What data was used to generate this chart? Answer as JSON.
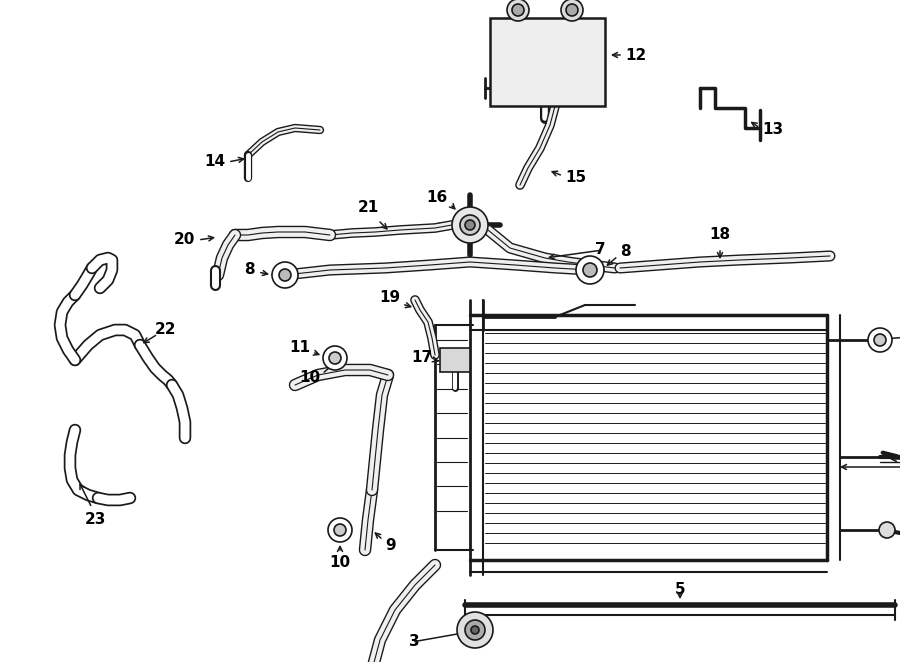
{
  "bg_color": "#ffffff",
  "line_color": "#1a1a1a",
  "text_color": "#000000",
  "lfs": 11,
  "fig_width": 9.0,
  "fig_height": 6.62,
  "dpi": 100
}
